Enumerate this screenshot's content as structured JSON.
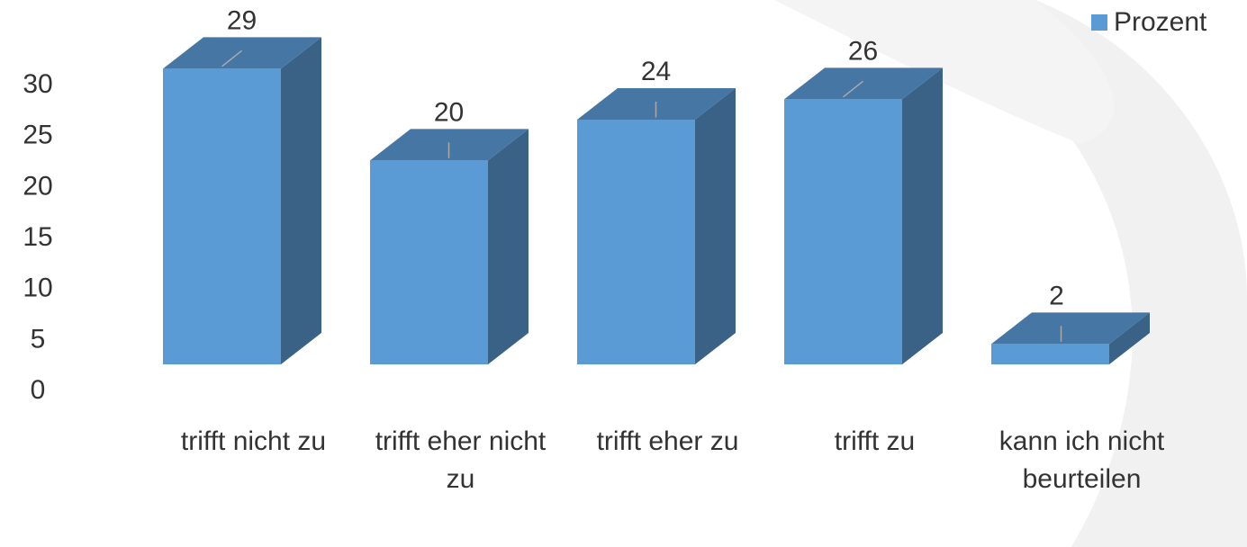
{
  "chart_data": {
    "type": "bar3d",
    "categories": [
      "trifft nicht zu",
      "trifft eher nicht zu",
      "trifft eher zu",
      "trifft zu",
      "kann ich nicht beurteilen"
    ],
    "series": [
      {
        "name": "Prozent",
        "color": "#5b9bd5",
        "values": [
          29,
          20,
          24,
          26,
          2
        ]
      }
    ],
    "ylim": [
      0,
      30
    ],
    "yticks": [
      0,
      5,
      10,
      15,
      20,
      25,
      30
    ],
    "grid": false,
    "legend": "top-right"
  }
}
